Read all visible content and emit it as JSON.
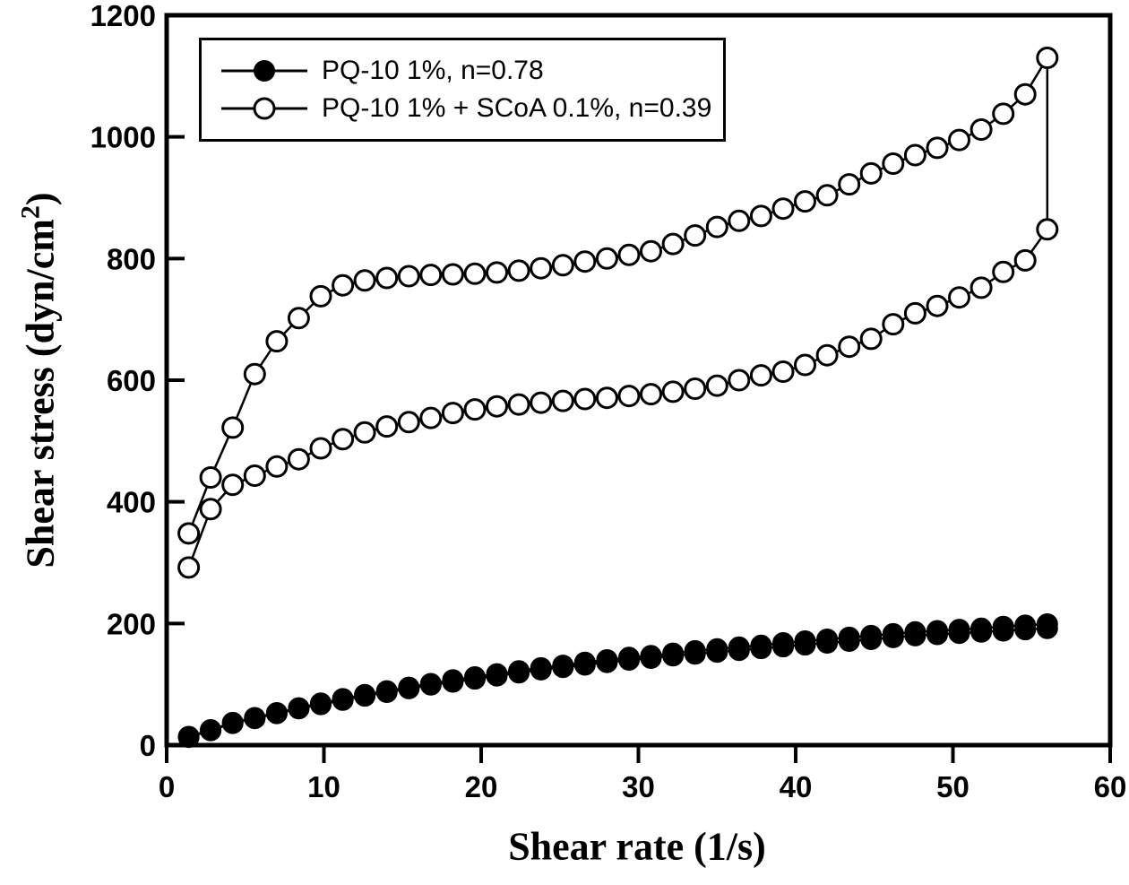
{
  "figure": {
    "background": "#ffffff",
    "ink": "#000000"
  },
  "axes": {
    "x": {
      "label": "Shear rate (1/s)",
      "min": 0,
      "max": 60,
      "ticks": [
        0,
        10,
        20,
        30,
        40,
        50,
        60
      ]
    },
    "y": {
      "label_pre": "Shear stress (dyn/cm",
      "label_sup": "2",
      "label_post": ")",
      "min": 0,
      "max": 1200,
      "ticks": [
        0,
        200,
        400,
        600,
        800,
        1000,
        1200
      ]
    }
  },
  "legend": {
    "entries": [
      {
        "label": "PQ-10 1%, n=0.78",
        "marker": "filled-circle"
      },
      {
        "label": "PQ-10 1% + SCoA 0.1%, n=0.39",
        "marker": "open-circle"
      }
    ]
  },
  "chart_data": {
    "type": "line",
    "title": "",
    "xlabel": "Shear rate (1/s)",
    "ylabel": "Shear stress (dyn/cm^2)",
    "xlim": [
      0,
      60
    ],
    "ylim": [
      0,
      1200
    ],
    "grid": false,
    "legend_position": "top-left",
    "note": "Each series is a thixotropic hysteresis loop: y_up = ramp-up branch, y_down = ramp-down branch, both aligned to x_values ascending; loop closes with a vertical segment at max shear rate.",
    "x_values": [
      1.4,
      2.8,
      4.2,
      5.6,
      7.0,
      8.4,
      9.8,
      11.2,
      12.6,
      14.0,
      15.4,
      16.8,
      18.2,
      19.6,
      21.0,
      22.4,
      23.8,
      25.2,
      26.6,
      28.0,
      29.4,
      30.8,
      32.2,
      33.6,
      35.0,
      36.4,
      37.8,
      39.2,
      40.6,
      42.0,
      43.4,
      44.8,
      46.2,
      47.6,
      49.0,
      50.4,
      51.8,
      53.2,
      54.6,
      56.0
    ],
    "series": [
      {
        "name": "PQ-10 1%, n=0.78",
        "marker": "filled-circle",
        "y_up": [
          13,
          24,
          36,
          44,
          52,
          60,
          67,
          74,
          81,
          87,
          93,
          99,
          104,
          109,
          114,
          119,
          124,
          128,
          132,
          136,
          140,
          143,
          147,
          150,
          153,
          156,
          159,
          162,
          165,
          168,
          171,
          174,
          177,
          180,
          182,
          184,
          186,
          188,
          190,
          192
        ],
        "y_down": [
          14,
          25,
          37,
          45,
          53,
          61,
          69,
          76,
          83,
          89,
          95,
          101,
          107,
          112,
          117,
          122,
          127,
          131,
          136,
          140,
          144,
          147,
          151,
          155,
          158,
          161,
          164,
          168,
          171,
          174,
          177,
          180,
          183,
          186,
          188,
          190,
          192,
          195,
          197,
          199
        ]
      },
      {
        "name": "PQ-10 1% + SCoA 0.1%, n=0.39",
        "marker": "open-circle",
        "y_up": [
          348,
          440,
          522,
          610,
          664,
          702,
          738,
          756,
          764,
          768,
          771,
          773,
          774,
          775,
          777,
          780,
          784,
          789,
          795,
          800,
          806,
          812,
          824,
          838,
          852,
          862,
          870,
          882,
          894,
          904,
          922,
          940,
          956,
          970,
          982,
          995,
          1012,
          1038,
          1070,
          1130
        ],
        "y_down": [
          292,
          388,
          428,
          443,
          458,
          470,
          488,
          503,
          514,
          524,
          531,
          538,
          546,
          552,
          557,
          560,
          563,
          566,
          569,
          571,
          574,
          577,
          581,
          586,
          591,
          600,
          608,
          614,
          625,
          641,
          655,
          668,
          692,
          710,
          722,
          736,
          752,
          778,
          797,
          848
        ]
      }
    ]
  }
}
